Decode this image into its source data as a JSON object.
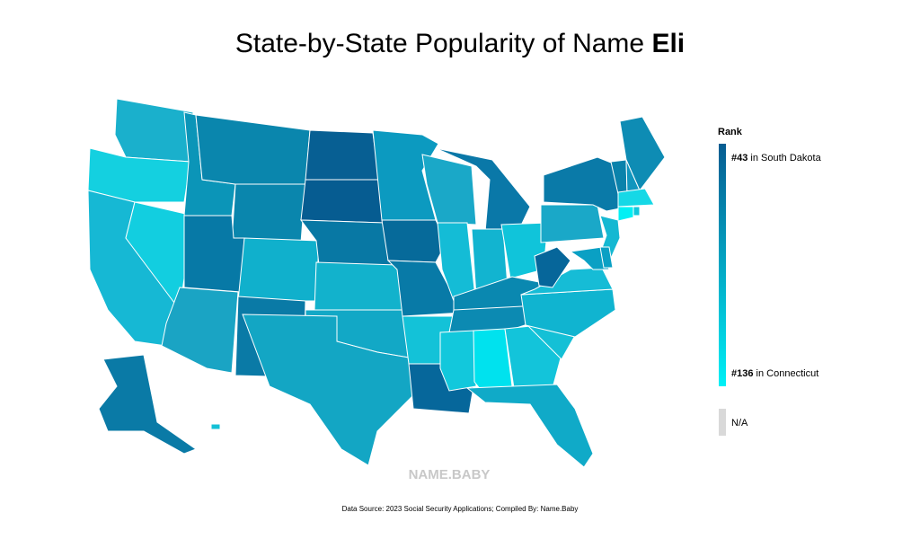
{
  "title_prefix": "State-by-State Popularity of Name ",
  "title_name": "Eli",
  "legend": {
    "title": "Rank",
    "top": {
      "rank": "#43",
      "text": " in South Dakota"
    },
    "bottom": {
      "rank": "#136",
      "text": " in Connecticut"
    },
    "na": "N/A",
    "color_top": "#065c91",
    "color_bottom": "#00f0f6",
    "na_color": "#d9d9d9"
  },
  "watermark": "NAME.BABY",
  "source": "Data Source: 2023 Social Security Applications; Compiled By: Name.Baby",
  "state_colors": [
    "#1ab0cc",
    "#14d0e0",
    "#16b8d4",
    "#12cee0",
    "#0b95b8",
    "#0a86ad",
    "#0a86ad",
    "#0779a6",
    "#10b0cc",
    "#1aa4c4",
    "#0a7aa6",
    "#075f93",
    "#065c91",
    "#0878a4",
    "#12b2cc",
    "#12a8c6",
    "#13a6c4",
    "#0c9ac0",
    "#066a9a",
    "#087aa7",
    "#13c2d8",
    "#06679b",
    "#1aa8c8",
    "#14bcd6",
    "#0a78a8",
    "#12b4d0",
    "#10c4da",
    "#0a88b0",
    "#0c8ab2",
    "#12c8dc",
    "#00e2ee",
    "#13c4da",
    "#10aac8",
    "#14c0d6",
    "#10b4d0",
    "#16bcd6",
    "#06669a",
    "#1aa8c8",
    "#0a7aa8",
    "#0e8cb4",
    "#0a82ab",
    "#1296be",
    "#16d8e6",
    "#00f0f4",
    "#10c8dc",
    "#14b8d2",
    "#0aa0c4",
    "#0aa0c4",
    "#0a7aa6",
    "#14c0d6"
  ]
}
